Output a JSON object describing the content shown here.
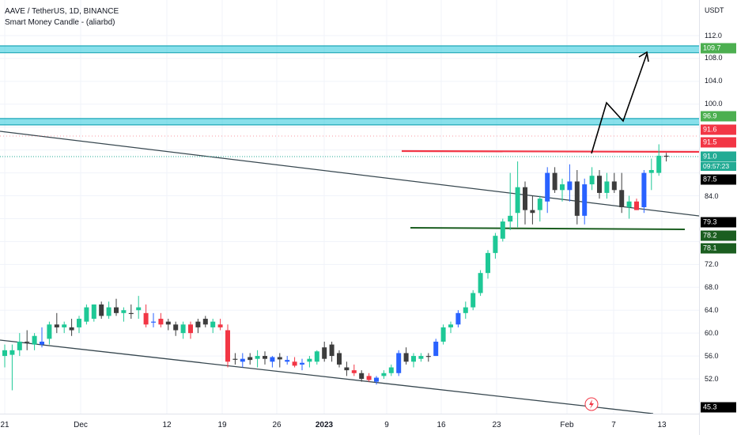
{
  "header": {
    "symbol_line": "AAVE / TetherUS, 1D, BINANCE",
    "indicator_line": "Smart Money Candle - (aliarbd)"
  },
  "axis": {
    "unit": "USDT",
    "price_labels": [
      "112.0",
      "108.0",
      "104.0",
      "100.0",
      "84.0",
      "72.0",
      "68.0",
      "64.0",
      "60.0",
      "56.0",
      "52.0"
    ],
    "price_tags": [
      {
        "text": "109.7",
        "color": "#4caf50"
      },
      {
        "text": "96.9",
        "color": "#4caf50"
      },
      {
        "text": "91.6",
        "color": "#f23645"
      },
      {
        "text": "91.5",
        "color": "#f23645"
      },
      {
        "text": "91.0",
        "color": "#22ab94"
      },
      {
        "text": "87.5",
        "color": "#000000"
      },
      {
        "text": "79.3",
        "color": "#000000"
      },
      {
        "text": "78.2",
        "color": "#1b5e20"
      },
      {
        "text": "78.1",
        "color": "#1b5e20"
      },
      {
        "text": "45.3",
        "color": "#000000"
      }
    ],
    "countdown": "09:57:23",
    "date_labels": [
      "21",
      "Dec",
      "12",
      "19",
      "26",
      "2023",
      "9",
      "16",
      "23",
      "Feb",
      "7",
      "13"
    ]
  },
  "chart_data": {
    "type": "candlestick",
    "symbol": "AAVE / TetherUS",
    "interval": "1D",
    "exchange": "BINANCE",
    "colors": {
      "up": "#1ec896",
      "down": "#3d3d3d",
      "blue": "#2962ff",
      "red": "#f23645"
    },
    "candles": [
      {
        "o": 56.0,
        "h": 58.0,
        "l": 54.0,
        "c": 57.0,
        "color": "up"
      },
      {
        "o": 56.2,
        "h": 58.0,
        "l": 50.0,
        "c": 57.0,
        "color": "up"
      },
      {
        "o": 57.0,
        "h": 60.0,
        "l": 56.0,
        "c": 58.5,
        "color": "up"
      },
      {
        "o": 58.5,
        "h": 60.5,
        "l": 57.0,
        "c": 58.5,
        "color": "down"
      },
      {
        "o": 58.0,
        "h": 60.0,
        "l": 57.0,
        "c": 59.5,
        "color": "up"
      },
      {
        "o": 58.5,
        "h": 61.0,
        "l": 57.5,
        "c": 58.0,
        "color": "blue"
      },
      {
        "o": 59.0,
        "h": 62.0,
        "l": 58.0,
        "c": 61.5,
        "color": "up"
      },
      {
        "o": 61.5,
        "h": 63.5,
        "l": 60.0,
        "c": 61.0,
        "color": "down"
      },
      {
        "o": 61.0,
        "h": 62.0,
        "l": 60.0,
        "c": 61.5,
        "color": "up"
      },
      {
        "o": 61.0,
        "h": 62.5,
        "l": 59.5,
        "c": 60.5,
        "color": "down"
      },
      {
        "o": 61.0,
        "h": 63.0,
        "l": 60.0,
        "c": 62.5,
        "color": "up"
      },
      {
        "o": 62.0,
        "h": 65.0,
        "l": 61.5,
        "c": 64.5,
        "color": "up"
      },
      {
        "o": 62.5,
        "h": 65.0,
        "l": 62.0,
        "c": 65.0,
        "color": "up"
      },
      {
        "o": 65.0,
        "h": 65.5,
        "l": 62.5,
        "c": 63.0,
        "color": "down"
      },
      {
        "o": 63.0,
        "h": 65.5,
        "l": 62.5,
        "c": 64.5,
        "color": "up"
      },
      {
        "o": 64.5,
        "h": 66.0,
        "l": 63.0,
        "c": 63.5,
        "color": "down"
      },
      {
        "o": 64.0,
        "h": 64.5,
        "l": 62.0,
        "c": 63.5,
        "color": "up"
      },
      {
        "o": 63.5,
        "h": 65.0,
        "l": 62.5,
        "c": 63.5,
        "color": "down"
      },
      {
        "o": 64.5,
        "h": 66.5,
        "l": 62.5,
        "c": 64.0,
        "color": "up"
      },
      {
        "o": 63.5,
        "h": 65.0,
        "l": 61.0,
        "c": 61.5,
        "color": "red"
      },
      {
        "o": 62.0,
        "h": 63.5,
        "l": 61.0,
        "c": 62.0,
        "color": "blue"
      },
      {
        "o": 62.5,
        "h": 63.5,
        "l": 61.0,
        "c": 61.5,
        "color": "red"
      },
      {
        "o": 62.0,
        "h": 62.5,
        "l": 60.5,
        "c": 61.5,
        "color": "down"
      },
      {
        "o": 61.5,
        "h": 62.0,
        "l": 59.5,
        "c": 60.5,
        "color": "down"
      },
      {
        "o": 60.0,
        "h": 62.0,
        "l": 59.0,
        "c": 61.5,
        "color": "up"
      },
      {
        "o": 61.5,
        "h": 62.0,
        "l": 59.0,
        "c": 60.0,
        "color": "red"
      },
      {
        "o": 61.0,
        "h": 62.5,
        "l": 60.0,
        "c": 62.0,
        "color": "down"
      },
      {
        "o": 62.5,
        "h": 63.0,
        "l": 61.0,
        "c": 61.5,
        "color": "down"
      },
      {
        "o": 61.0,
        "h": 62.5,
        "l": 60.0,
        "c": 62.0,
        "color": "up"
      },
      {
        "o": 61.5,
        "h": 62.5,
        "l": 60.5,
        "c": 61.0,
        "color": "red"
      },
      {
        "o": 60.5,
        "h": 61.5,
        "l": 54.0,
        "c": 55.0,
        "color": "red"
      },
      {
        "o": 55.5,
        "h": 56.5,
        "l": 54.5,
        "c": 55.5,
        "color": "down"
      },
      {
        "o": 55.0,
        "h": 56.5,
        "l": 54.0,
        "c": 55.5,
        "color": "blue"
      },
      {
        "o": 55.8,
        "h": 56.5,
        "l": 54.5,
        "c": 55.3,
        "color": "down"
      },
      {
        "o": 55.5,
        "h": 57.0,
        "l": 54.0,
        "c": 56.0,
        "color": "up"
      },
      {
        "o": 56.0,
        "h": 56.8,
        "l": 54.5,
        "c": 55.5,
        "color": "down"
      },
      {
        "o": 55.0,
        "h": 56.0,
        "l": 54.0,
        "c": 55.8,
        "color": "blue"
      },
      {
        "o": 55.8,
        "h": 56.5,
        "l": 54.0,
        "c": 55.4,
        "color": "down"
      },
      {
        "o": 55.3,
        "h": 56.0,
        "l": 54.5,
        "c": 55.0,
        "color": "blue"
      },
      {
        "o": 55.0,
        "h": 55.8,
        "l": 54.0,
        "c": 54.3,
        "color": "red"
      },
      {
        "o": 54.5,
        "h": 55.5,
        "l": 53.5,
        "c": 54.8,
        "color": "blue"
      },
      {
        "o": 55.0,
        "h": 56.0,
        "l": 54.0,
        "c": 55.5,
        "color": "up"
      },
      {
        "o": 55.0,
        "h": 57.0,
        "l": 54.5,
        "c": 56.8,
        "color": "up"
      },
      {
        "o": 57.5,
        "h": 58.5,
        "l": 55.0,
        "c": 55.5,
        "color": "down"
      },
      {
        "o": 58.0,
        "h": 58.5,
        "l": 55.0,
        "c": 56.0,
        "color": "down"
      },
      {
        "o": 56.5,
        "h": 57.0,
        "l": 54.0,
        "c": 54.5,
        "color": "down"
      },
      {
        "o": 54.0,
        "h": 55.0,
        "l": 52.5,
        "c": 53.5,
        "color": "down"
      },
      {
        "o": 53.5,
        "h": 54.5,
        "l": 52.5,
        "c": 53.0,
        "color": "red"
      },
      {
        "o": 53.0,
        "h": 53.5,
        "l": 51.5,
        "c": 52.0,
        "color": "down"
      },
      {
        "o": 52.5,
        "h": 53.0,
        "l": 51.5,
        "c": 51.8,
        "color": "red"
      },
      {
        "o": 51.5,
        "h": 52.5,
        "l": 51.0,
        "c": 52.2,
        "color": "blue"
      },
      {
        "o": 52.5,
        "h": 53.5,
        "l": 52.0,
        "c": 53.0,
        "color": "up"
      },
      {
        "o": 53.0,
        "h": 54.5,
        "l": 52.5,
        "c": 54.0,
        "color": "up"
      },
      {
        "o": 53.0,
        "h": 57.0,
        "l": 52.5,
        "c": 56.5,
        "color": "blue"
      },
      {
        "o": 56.5,
        "h": 57.5,
        "l": 54.5,
        "c": 55.0,
        "color": "down"
      },
      {
        "o": 55.0,
        "h": 56.5,
        "l": 54.0,
        "c": 56.0,
        "color": "up"
      },
      {
        "o": 55.5,
        "h": 56.5,
        "l": 55.0,
        "c": 56.0,
        "color": "up"
      },
      {
        "o": 56.0,
        "h": 56.5,
        "l": 55.0,
        "c": 56.0,
        "color": "down"
      },
      {
        "o": 56.0,
        "h": 59.0,
        "l": 56.0,
        "c": 58.5,
        "color": "blue"
      },
      {
        "o": 58.5,
        "h": 61.5,
        "l": 58.0,
        "c": 61.0,
        "color": "up"
      },
      {
        "o": 61.0,
        "h": 62.0,
        "l": 60.0,
        "c": 61.5,
        "color": "up"
      },
      {
        "o": 61.5,
        "h": 64.0,
        "l": 61.0,
        "c": 63.5,
        "color": "blue"
      },
      {
        "o": 63.5,
        "h": 65.5,
        "l": 62.5,
        "c": 64.5,
        "color": "up"
      },
      {
        "o": 64.5,
        "h": 67.5,
        "l": 64.0,
        "c": 67.0,
        "color": "up"
      },
      {
        "o": 67.0,
        "h": 71.0,
        "l": 66.5,
        "c": 70.5,
        "color": "up"
      },
      {
        "o": 70.5,
        "h": 74.5,
        "l": 69.5,
        "c": 74.0,
        "color": "up"
      },
      {
        "o": 74.0,
        "h": 77.5,
        "l": 73.0,
        "c": 77.0,
        "color": "up"
      },
      {
        "o": 76.5,
        "h": 80.0,
        "l": 76.0,
        "c": 79.5,
        "color": "up"
      },
      {
        "o": 79.5,
        "h": 88.0,
        "l": 78.0,
        "c": 80.5,
        "color": "up"
      },
      {
        "o": 81.0,
        "h": 90.0,
        "l": 78.5,
        "c": 85.5,
        "color": "up"
      },
      {
        "o": 85.5,
        "h": 86.5,
        "l": 79.0,
        "c": 81.5,
        "color": "down"
      },
      {
        "o": 81.5,
        "h": 84.0,
        "l": 79.0,
        "c": 81.0,
        "color": "down"
      },
      {
        "o": 81.5,
        "h": 84.0,
        "l": 79.5,
        "c": 83.5,
        "color": "up"
      },
      {
        "o": 83.0,
        "h": 89.0,
        "l": 81.0,
        "c": 88.0,
        "color": "blue"
      },
      {
        "o": 88.0,
        "h": 89.0,
        "l": 84.5,
        "c": 85.0,
        "color": "down"
      },
      {
        "o": 85.0,
        "h": 87.0,
        "l": 83.0,
        "c": 86.0,
        "color": "up"
      },
      {
        "o": 85.0,
        "h": 89.5,
        "l": 83.0,
        "c": 86.5,
        "color": "blue"
      },
      {
        "o": 86.5,
        "h": 88.5,
        "l": 79.0,
        "c": 80.5,
        "color": "down"
      },
      {
        "o": 80.5,
        "h": 87.0,
        "l": 79.0,
        "c": 86.0,
        "color": "blue"
      },
      {
        "o": 86.0,
        "h": 89.0,
        "l": 85.0,
        "c": 87.5,
        "color": "up"
      },
      {
        "o": 87.5,
        "h": 88.5,
        "l": 83.5,
        "c": 84.5,
        "color": "down"
      },
      {
        "o": 84.5,
        "h": 88.0,
        "l": 83.5,
        "c": 86.5,
        "color": "up"
      },
      {
        "o": 86.5,
        "h": 88.0,
        "l": 84.5,
        "c": 85.0,
        "color": "down"
      },
      {
        "o": 85.0,
        "h": 88.0,
        "l": 81.0,
        "c": 82.0,
        "color": "down"
      },
      {
        "o": 82.0,
        "h": 84.0,
        "l": 80.0,
        "c": 83.0,
        "color": "up"
      },
      {
        "o": 83.0,
        "h": 83.5,
        "l": 81.5,
        "c": 81.5,
        "color": "red"
      },
      {
        "o": 82.0,
        "h": 88.5,
        "l": 81.0,
        "c": 88.0,
        "color": "blue"
      },
      {
        "o": 88.0,
        "h": 90.5,
        "l": 85.0,
        "c": 88.5,
        "color": "up"
      },
      {
        "o": 88.0,
        "h": 93.0,
        "l": 87.5,
        "c": 91.0,
        "color": "up"
      },
      {
        "o": 91.0,
        "h": 91.5,
        "l": 90.0,
        "c": 91.0,
        "color": "down"
      }
    ],
    "zones": [
      {
        "from": 109.0,
        "to": 110.2,
        "color": "#26c6da"
      },
      {
        "from": 96.4,
        "to": 97.5,
        "color": "#26c6da"
      }
    ],
    "levels": [
      {
        "label": "resistance",
        "price": 91.6,
        "color": "#f23645"
      },
      {
        "label": "support",
        "price": 78.5,
        "color": "#1b5e20"
      }
    ],
    "y_range": [
      48,
      116
    ],
    "x_labels": [
      "21",
      "Dec",
      "12",
      "19",
      "26",
      "2023",
      "9",
      "16",
      "23",
      "Feb",
      "7",
      "13"
    ]
  }
}
